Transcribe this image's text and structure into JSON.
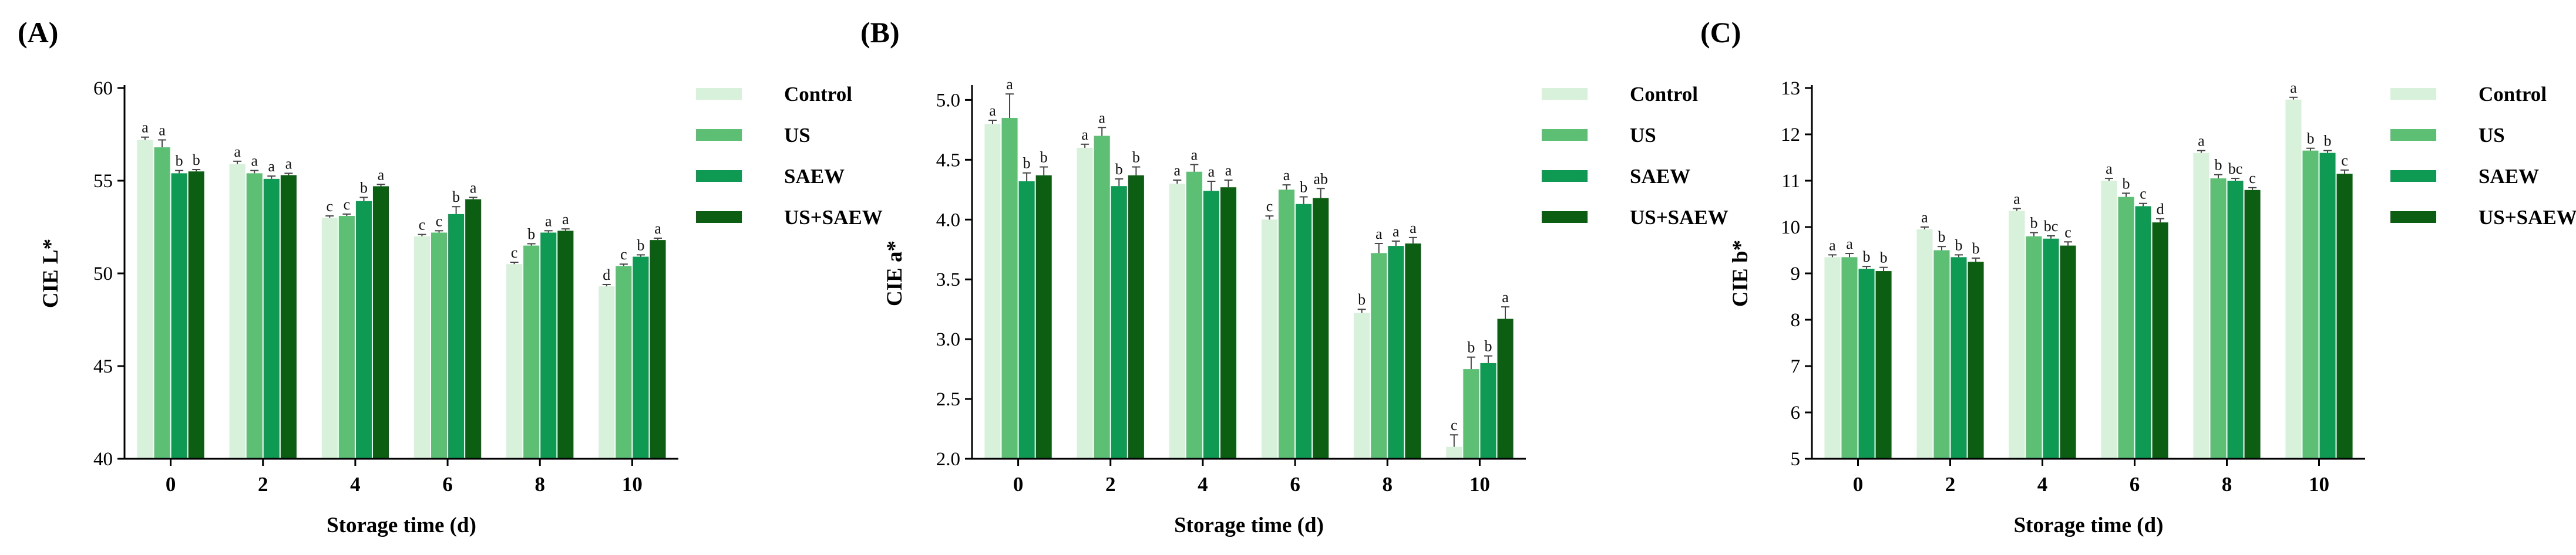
{
  "colors": [
    "#d7f1da",
    "#5dbf74",
    "#0f9a54",
    "#0c5e13"
  ],
  "chart_data": [
    {
      "type": "bar",
      "panel_label": "(A)",
      "title": "",
      "xlabel": "Storage time (d)",
      "ylabel": "CIE L*",
      "categories": [
        "0",
        "2",
        "4",
        "6",
        "8",
        "10"
      ],
      "ylim": [
        40,
        60
      ],
      "yticks": [
        "40",
        "45",
        "50",
        "55",
        "60"
      ],
      "legend_position": "right",
      "series": [
        {
          "name": "Control",
          "values": [
            57.2,
            55.9,
            53.0,
            52.0,
            50.5,
            49.3
          ],
          "errors": [
            0.15,
            0.15,
            0.1,
            0.1,
            0.1,
            0.1
          ],
          "letters": [
            "a",
            "a",
            "c",
            "c",
            "c",
            "d"
          ]
        },
        {
          "name": "US",
          "values": [
            56.8,
            55.4,
            53.1,
            52.2,
            51.5,
            50.4
          ],
          "errors": [
            0.4,
            0.15,
            0.1,
            0.1,
            0.1,
            0.1
          ],
          "letters": [
            "a",
            "a",
            "c",
            "c",
            "b",
            "c"
          ]
        },
        {
          "name": "SAEW",
          "values": [
            55.4,
            55.1,
            53.9,
            53.2,
            52.2,
            50.9
          ],
          "errors": [
            0.15,
            0.15,
            0.2,
            0.4,
            0.1,
            0.1
          ],
          "letters": [
            "b",
            "a",
            "b",
            "b",
            "a",
            "b"
          ]
        },
        {
          "name": "US+SAEW",
          "values": [
            55.5,
            55.3,
            54.7,
            54.0,
            52.3,
            51.8
          ],
          "errors": [
            0.1,
            0.1,
            0.1,
            0.1,
            0.1,
            0.1
          ],
          "letters": [
            "b",
            "a",
            "a",
            "a",
            "a",
            "a"
          ]
        }
      ]
    },
    {
      "type": "bar",
      "panel_label": "(B)",
      "title": "",
      "xlabel": "Storage time (d)",
      "ylabel": "CIE a*",
      "categories": [
        "0",
        "2",
        "4",
        "6",
        "8",
        "10"
      ],
      "ylim": [
        2.0,
        5.1
      ],
      "yticks": [
        "2.0",
        "2.5",
        "3.0",
        "3.5",
        "4.0",
        "4.5",
        "5.0"
      ],
      "legend_position": "right",
      "series": [
        {
          "name": "Control",
          "values": [
            4.8,
            4.6,
            4.3,
            4.0,
            3.22,
            2.1
          ],
          "errors": [
            0.03,
            0.03,
            0.03,
            0.03,
            0.03,
            0.1
          ],
          "letters": [
            "a",
            "a",
            "a",
            "c",
            "b",
            "c"
          ]
        },
        {
          "name": "US",
          "values": [
            4.85,
            4.7,
            4.4,
            4.25,
            3.72,
            2.75
          ],
          "errors": [
            0.2,
            0.07,
            0.06,
            0.04,
            0.08,
            0.1
          ],
          "letters": [
            "a",
            "a",
            "a",
            "a",
            "a",
            "b"
          ]
        },
        {
          "name": "SAEW",
          "values": [
            4.32,
            4.28,
            4.24,
            4.13,
            3.78,
            2.8
          ],
          "errors": [
            0.07,
            0.06,
            0.08,
            0.06,
            0.04,
            0.06
          ],
          "letters": [
            "b",
            "b",
            "a",
            "b",
            "a",
            "b"
          ]
        },
        {
          "name": "US+SAEW",
          "values": [
            4.37,
            4.37,
            4.27,
            4.18,
            3.8,
            3.17
          ],
          "errors": [
            0.07,
            0.07,
            0.06,
            0.08,
            0.05,
            0.1
          ],
          "letters": [
            "b",
            "b",
            "a",
            "ab",
            "a",
            "a"
          ]
        }
      ]
    },
    {
      "type": "bar",
      "panel_label": "(C)",
      "title": "",
      "xlabel": "Storage time (d)",
      "ylabel": "CIE b*",
      "categories": [
        "0",
        "2",
        "4",
        "6",
        "8",
        "10"
      ],
      "ylim": [
        5,
        13
      ],
      "yticks": [
        "5",
        "6",
        "7",
        "8",
        "9",
        "10",
        "11",
        "12",
        "13"
      ],
      "legend_position": "right",
      "series": [
        {
          "name": "Control",
          "values": [
            9.35,
            9.95,
            10.35,
            11.0,
            11.6,
            12.75
          ],
          "errors": [
            0.05,
            0.05,
            0.05,
            0.05,
            0.05,
            0.05
          ],
          "letters": [
            "a",
            "a",
            "a",
            "a",
            "a",
            "a"
          ]
        },
        {
          "name": "US",
          "values": [
            9.35,
            9.5,
            9.8,
            10.65,
            11.05,
            11.65
          ],
          "errors": [
            0.08,
            0.08,
            0.08,
            0.08,
            0.08,
            0.05
          ],
          "letters": [
            "a",
            "b",
            "b",
            "b",
            "b",
            "b"
          ]
        },
        {
          "name": "SAEW",
          "values": [
            9.1,
            9.35,
            9.75,
            10.45,
            11.0,
            11.6
          ],
          "errors": [
            0.05,
            0.05,
            0.06,
            0.06,
            0.05,
            0.05
          ],
          "letters": [
            "b",
            "b",
            "bc",
            "c",
            "bc",
            "b"
          ]
        },
        {
          "name": "US+SAEW",
          "values": [
            9.05,
            9.25,
            9.6,
            10.1,
            10.8,
            11.15
          ],
          "errors": [
            0.08,
            0.08,
            0.08,
            0.08,
            0.05,
            0.08
          ],
          "letters": [
            "b",
            "b",
            "c",
            "d",
            "c",
            "c"
          ]
        }
      ]
    }
  ]
}
